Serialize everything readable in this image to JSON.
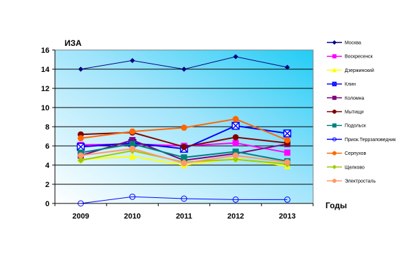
{
  "chart_data": {
    "type": "line",
    "ylabel": "ИЗА",
    "xlabel": "Годы",
    "categories": [
      "2009",
      "2010",
      "2011",
      "2012",
      "2013"
    ],
    "ylim": [
      0,
      16
    ],
    "yticks": [
      "0",
      "2",
      "4",
      "6",
      "8",
      "10",
      "12",
      "14",
      "16"
    ],
    "grid": true,
    "legend_position": "right",
    "series": [
      {
        "name": "Москва",
        "color": "#000080",
        "marker": "diamond",
        "values": [
          14.0,
          14.9,
          14.0,
          15.3,
          14.2
        ]
      },
      {
        "name": "Воскресенск",
        "color": "#ff00ff",
        "marker": "square",
        "values": [
          6.1,
          6.2,
          6.0,
          6.3,
          5.3
        ]
      },
      {
        "name": "Дзержинский",
        "color": "#ffff00",
        "marker": "triangle",
        "values": [
          4.6,
          4.9,
          4.0,
          4.7,
          3.9
        ]
      },
      {
        "name": "Клин",
        "color": "#0000ff",
        "marker": "x-square",
        "values": [
          5.9,
          6.3,
          5.7,
          8.1,
          7.3
        ]
      },
      {
        "name": "Коломна",
        "color": "#800080",
        "marker": "square",
        "values": [
          5.0,
          6.6,
          4.5,
          5.2,
          6.2
        ]
      },
      {
        "name": "Мытищи",
        "color": "#800000",
        "marker": "circle",
        "values": [
          7.2,
          7.4,
          5.9,
          6.9,
          6.3
        ]
      },
      {
        "name": "Подольск",
        "color": "#008080",
        "marker": "square",
        "values": [
          5.3,
          6.2,
          4.8,
          5.4,
          4.4
        ]
      },
      {
        "name": "Приок.Террзаповедник",
        "color": "#0000ff",
        "marker": "circle-open",
        "values": [
          0.0,
          0.7,
          0.5,
          0.4,
          0.4
        ]
      },
      {
        "name": "Серпухов",
        "color": "#ff6600",
        "marker": "circle",
        "values": [
          6.8,
          7.5,
          7.9,
          8.8,
          6.6
        ]
      },
      {
        "name": "Щелково",
        "color": "#99cc00",
        "marker": "diamond",
        "values": [
          4.5,
          5.5,
          4.3,
          4.6,
          4.1
        ]
      },
      {
        "name": "Электросталь",
        "color": "#ff9966",
        "marker": "circle",
        "values": [
          5.0,
          5.7,
          4.2,
          5.0,
          4.3
        ]
      }
    ]
  }
}
